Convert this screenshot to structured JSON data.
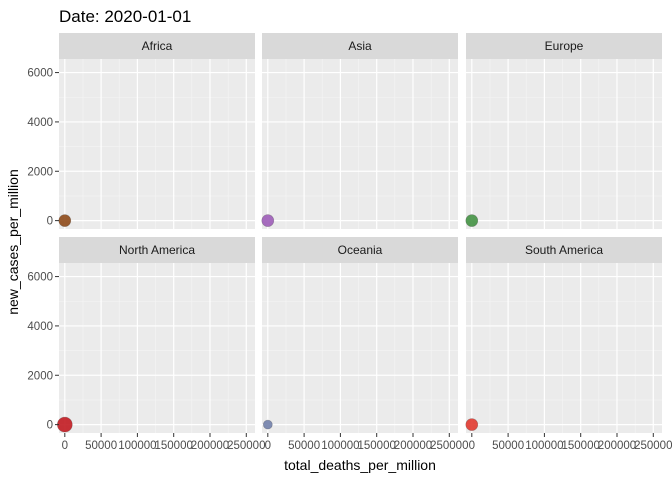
{
  "chart_data": {
    "type": "scatter",
    "title": "Date: 2020-01-01",
    "xlabel": "total_deaths_per_million",
    "ylabel": "new_cases_per_million",
    "xlim": [
      -8000,
      262000
    ],
    "ylim": [
      -340,
      6550
    ],
    "x_ticks": [
      0,
      50000,
      100000,
      150000,
      200000,
      250000
    ],
    "x_tick_labels": [
      "0",
      "50000",
      "100000",
      "150000",
      "200000",
      "250000"
    ],
    "y_ticks": [
      0,
      2000,
      4000,
      6000
    ],
    "y_tick_labels": [
      "0",
      "2000",
      "4000",
      "6000"
    ],
    "grid": true,
    "legend": "none",
    "facets": [
      {
        "name": "Africa",
        "points": [
          {
            "x": 0,
            "y": 0,
            "color": "#8B4513",
            "size": "medium"
          }
        ]
      },
      {
        "name": "Asia",
        "points": [
          {
            "x": 0,
            "y": 0,
            "color": "#9B59B6",
            "size": "medium"
          }
        ]
      },
      {
        "name": "Europe",
        "points": [
          {
            "x": 0,
            "y": 0,
            "color": "#3F8F3F",
            "size": "medium"
          }
        ]
      },
      {
        "name": "North America",
        "points": [
          {
            "x": 0,
            "y": 0,
            "color": "#C0141B",
            "size": "large"
          }
        ]
      },
      {
        "name": "Oceania",
        "points": [
          {
            "x": 0,
            "y": 0,
            "color": "#6E7DA8",
            "size": "small"
          }
        ]
      },
      {
        "name": "South America",
        "points": [
          {
            "x": 0,
            "y": 0,
            "color": "#E0342A",
            "size": "medium"
          }
        ]
      }
    ]
  }
}
